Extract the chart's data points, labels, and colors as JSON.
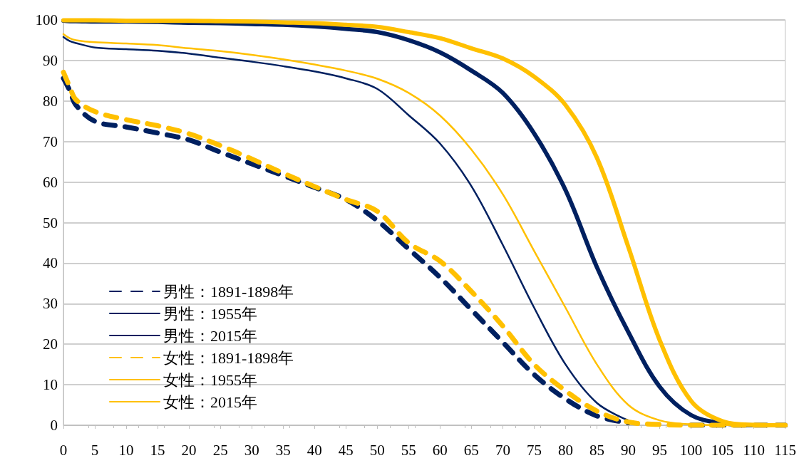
{
  "chart_data": {
    "type": "line",
    "x": [
      0,
      1,
      2,
      5,
      10,
      15,
      20,
      25,
      30,
      35,
      40,
      45,
      50,
      55,
      60,
      65,
      70,
      75,
      80,
      85,
      90,
      95,
      100,
      105,
      110,
      115
    ],
    "series": [
      {
        "name": "男性：1891-1898年",
        "color": "#002060",
        "line_style": "dashed",
        "values": [
          85.6,
          82.6,
          79,
          75,
          73.6,
          72.1,
          70.4,
          67.4,
          64.5,
          61.6,
          58.7,
          55.7,
          50.5,
          43.5,
          36.5,
          28.5,
          20.5,
          12.5,
          6.5,
          2.3,
          0.6,
          null,
          0,
          0,
          0,
          0
        ]
      },
      {
        "name": "男性：1955年",
        "color": "#002060",
        "line_style": "solid",
        "values": [
          95.8,
          94.8,
          94.3,
          93.2,
          92.8,
          92.4,
          91.7,
          90.7,
          89.7,
          88.6,
          87.3,
          85.6,
          83,
          76.5,
          69.5,
          59,
          44.5,
          29,
          15,
          5.5,
          1.2,
          null,
          null,
          null,
          null,
          null
        ]
      },
      {
        "name": "男性：2015年",
        "color": "#002060",
        "line_style": "solid",
        "values": [
          99.8,
          99.7,
          99.7,
          99.6,
          99.6,
          99.5,
          99.3,
          99.2,
          99,
          98.8,
          98.4,
          97.8,
          97,
          95,
          92,
          87.5,
          82,
          72,
          58,
          39,
          23,
          9.5,
          2.5,
          0.5,
          0,
          0
        ]
      },
      {
        "name": "女性：1891-1898年",
        "color": "#ffc000",
        "line_style": "dashed",
        "values": [
          87.1,
          83.5,
          80.3,
          77.4,
          75.4,
          73.9,
          71.9,
          69,
          65.7,
          62.2,
          58.9,
          55.7,
          52.8,
          45,
          40.5,
          33,
          24.5,
          15,
          8.5,
          3.5,
          0.8,
          0.2,
          0,
          0,
          0,
          0
        ]
      },
      {
        "name": "女性：1955年",
        "color": "#ffc000",
        "line_style": "solid",
        "values": [
          96.5,
          95.5,
          95,
          94.5,
          94.2,
          93.8,
          93,
          92.3,
          91.4,
          90.3,
          89,
          87.5,
          85.5,
          82,
          76.4,
          68,
          57,
          43,
          29,
          15,
          5,
          1.2,
          0.2,
          0,
          0,
          0
        ]
      },
      {
        "name": "女性：2015年",
        "color": "#ffc000",
        "line_style": "solid",
        "values": [
          99.9,
          99.9,
          99.9,
          99.9,
          99.8,
          99.8,
          99.8,
          99.7,
          99.6,
          99.4,
          99.2,
          98.8,
          98.3,
          97,
          95.5,
          93,
          90.5,
          86,
          79,
          66,
          44,
          21,
          6,
          1,
          0.1,
          0
        ]
      }
    ],
    "xlim": [
      0,
      115
    ],
    "xticks": [
      0,
      5,
      10,
      15,
      20,
      25,
      30,
      35,
      40,
      45,
      50,
      55,
      60,
      65,
      70,
      75,
      80,
      85,
      90,
      95,
      100,
      105,
      110,
      115
    ],
    "ylim": [
      0,
      100
    ],
    "yticks": [
      0,
      10,
      20,
      30,
      40,
      50,
      60,
      70,
      80,
      90,
      100
    ],
    "grid": "y",
    "legend": "bottom left",
    "marker": "none"
  }
}
